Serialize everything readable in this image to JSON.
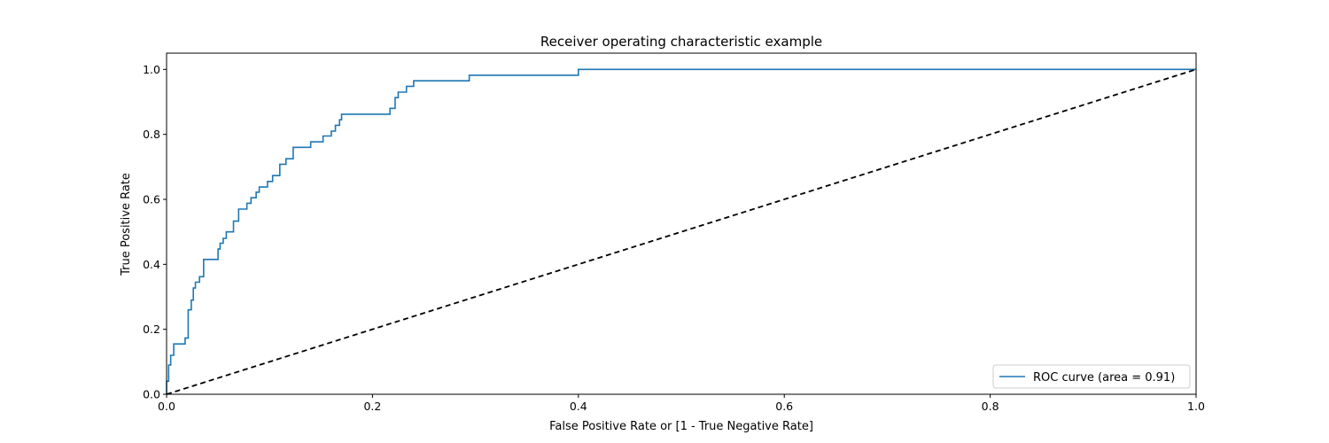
{
  "chart_data": {
    "type": "line",
    "title": "Receiver operating characteristic example",
    "xlabel": "False Positive Rate or [1 - True Negative Rate]",
    "ylabel": "True Positive Rate",
    "xlim": [
      0.0,
      1.0
    ],
    "ylim": [
      0.0,
      1.05
    ],
    "xticks": [
      "0.0",
      "0.2",
      "0.4",
      "0.6",
      "0.8",
      "1.0"
    ],
    "yticks": [
      "0.0",
      "0.2",
      "0.4",
      "0.6",
      "0.8",
      "1.0"
    ],
    "grid": false,
    "legend_position": "lower right",
    "series": [
      {
        "name": "ROC curve (area = 0.91)",
        "color": "#1f77b4",
        "style": "solid",
        "x": [
          0.0,
          0.0,
          0.002,
          0.002,
          0.004,
          0.004,
          0.007,
          0.007,
          0.018,
          0.018,
          0.021,
          0.021,
          0.024,
          0.024,
          0.026,
          0.026,
          0.028,
          0.028,
          0.032,
          0.032,
          0.036,
          0.036,
          0.05,
          0.05,
          0.052,
          0.052,
          0.055,
          0.055,
          0.058,
          0.058,
          0.065,
          0.065,
          0.07,
          0.07,
          0.078,
          0.078,
          0.082,
          0.082,
          0.087,
          0.087,
          0.09,
          0.09,
          0.098,
          0.098,
          0.103,
          0.103,
          0.11,
          0.11,
          0.116,
          0.116,
          0.123,
          0.123,
          0.14,
          0.14,
          0.152,
          0.152,
          0.16,
          0.16,
          0.164,
          0.164,
          0.168,
          0.168,
          0.17,
          0.17,
          0.217,
          0.217,
          0.222,
          0.222,
          0.225,
          0.225,
          0.233,
          0.233,
          0.24,
          0.24,
          0.294,
          0.294,
          0.4,
          0.4,
          1.0
        ],
        "y": [
          0.0,
          0.04,
          0.04,
          0.09,
          0.09,
          0.12,
          0.12,
          0.155,
          0.155,
          0.173,
          0.173,
          0.26,
          0.26,
          0.29,
          0.29,
          0.327,
          0.327,
          0.345,
          0.345,
          0.362,
          0.362,
          0.415,
          0.415,
          0.447,
          0.447,
          0.465,
          0.465,
          0.48,
          0.48,
          0.5,
          0.5,
          0.533,
          0.533,
          0.57,
          0.57,
          0.588,
          0.588,
          0.605,
          0.605,
          0.622,
          0.622,
          0.638,
          0.638,
          0.655,
          0.655,
          0.673,
          0.673,
          0.708,
          0.708,
          0.725,
          0.725,
          0.76,
          0.76,
          0.777,
          0.777,
          0.795,
          0.795,
          0.81,
          0.81,
          0.828,
          0.828,
          0.845,
          0.845,
          0.862,
          0.862,
          0.88,
          0.88,
          0.913,
          0.913,
          0.93,
          0.93,
          0.948,
          0.948,
          0.965,
          0.965,
          0.982,
          0.982,
          1.0,
          1.0
        ]
      },
      {
        "color": "#000000",
        "style": "dashed",
        "x": [
          0.0,
          1.0
        ],
        "y": [
          0.0,
          1.0
        ]
      }
    ]
  }
}
